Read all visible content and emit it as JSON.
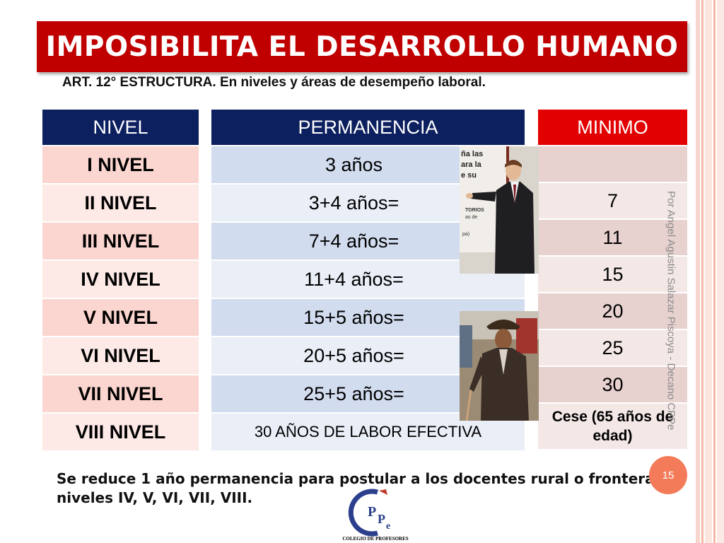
{
  "title": "IMPOSIBILITA EL DESARROLLO HUMANO",
  "subtitle": "ART. 12° ESTRUCTURA. En niveles y áreas de desempeño laboral.",
  "table": {
    "headers": {
      "nivel": "NIVEL",
      "permanencia": "PERMANENCIA",
      "minimo": "MINIMO"
    },
    "niveles": [
      "I NIVEL",
      "II NIVEL",
      "III NIVEL",
      "IV NIVEL",
      "V NIVEL",
      "VI NIVEL",
      "VII NIVEL",
      "VIII NIVEL"
    ],
    "permanencia": [
      "3 años",
      "3+4 años=",
      "7+4 años=",
      "11+4 años=",
      "15+5 años=",
      "20+5 años=",
      "25+5 años=",
      "30 AÑOS DE LABOR EFECTIVA"
    ],
    "minimo": [
      "",
      "7",
      "11",
      "15",
      "20",
      "25",
      "30",
      "Cese (65 años de edad)"
    ]
  },
  "photo_text": {
    "line1": "ña las",
    "line2": "ara la",
    "line3": "e su",
    "line4": "TORIOS",
    "line5": "as de",
    "line6": "pa)"
  },
  "vertical_credit": "Por Angel Agustin Salazar Piscoya - Decano CPPe",
  "footnote": "Se reduce 1 año permanencia para  postular a los docentes rural o frontera niveles IV, V, VI, VII, VIII.",
  "page_number": "15",
  "logo": {
    "letters": "CPPe",
    "caption": "COLEGIO DE PROFESORES"
  },
  "colors": {
    "title_bg": "#c00000",
    "header_navy": "#0c1f5e",
    "minimo_header": "#e30000",
    "badge": "#f37b59"
  }
}
